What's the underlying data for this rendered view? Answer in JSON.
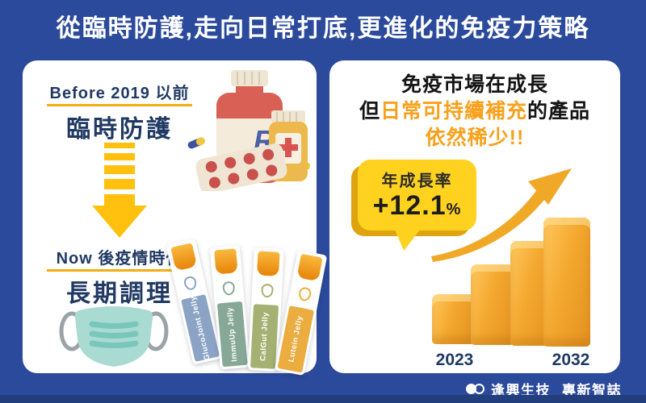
{
  "title": "從臨時防護,走向日常打底,更進化的免疫力策略",
  "left_card": {
    "before": {
      "label": "Before 2019 以前",
      "title": "臨時防護"
    },
    "now": {
      "label": "Now 後疫情時代",
      "title": "長期調理"
    },
    "sticks": [
      {
        "label": "GlucoJoint Jelly",
        "color": "#8BA4C6"
      },
      {
        "label": "ImmuUp Jelly",
        "color": "#87A896"
      },
      {
        "label": "CalGut Jelly",
        "color": "#A4B172"
      },
      {
        "label": "Lutein Jelly",
        "color": "#EBAC40"
      }
    ]
  },
  "right_card": {
    "headline": {
      "line1": "免疫市場在成長",
      "line2_prefix": "但",
      "line2_highlight": "日常可持續補充",
      "line2_suffix": "的產品",
      "line3": "依然稀少!!"
    },
    "bubble": {
      "label": "年成長率",
      "value": "+12.1",
      "unit": "%"
    },
    "year_start": "2023",
    "year_end": "2032"
  },
  "footer": {
    "brand": "逢興生技",
    "publication": "專新智誌"
  },
  "colors": {
    "background": "#2B4A9C",
    "bottom_strip": "#233E7D",
    "card": "#FFFFFF",
    "navy_text": "#203A64",
    "yellow_accent": "#FFC10D",
    "underline_gold": "#F2AE10",
    "orange_highlight": "#F7A11C",
    "bubble_yellow": "#FFD21F",
    "bubble_shadow": "#DFA30F",
    "bar_gold": "#F4A82F",
    "mask_teal": "#A9DBD3",
    "bottle_red": "#D96055"
  },
  "chart_data": {
    "type": "bar",
    "title": "免疫市場在成長(年成長率 +12.1%)",
    "categories": [
      "2023",
      "",
      "",
      "2032"
    ],
    "values": [
      62,
      100,
      130,
      160
    ],
    "values_note": "relative bar heights in px — decorative 3D chart, no numeric axis shown",
    "annotation": "年成長率 +12.1%",
    "xlabel": "",
    "ylabel": "",
    "legend": "none",
    "bar_color": "#F4A82F",
    "trend": "increasing, upward curved arrow from 2023 to 2032"
  }
}
